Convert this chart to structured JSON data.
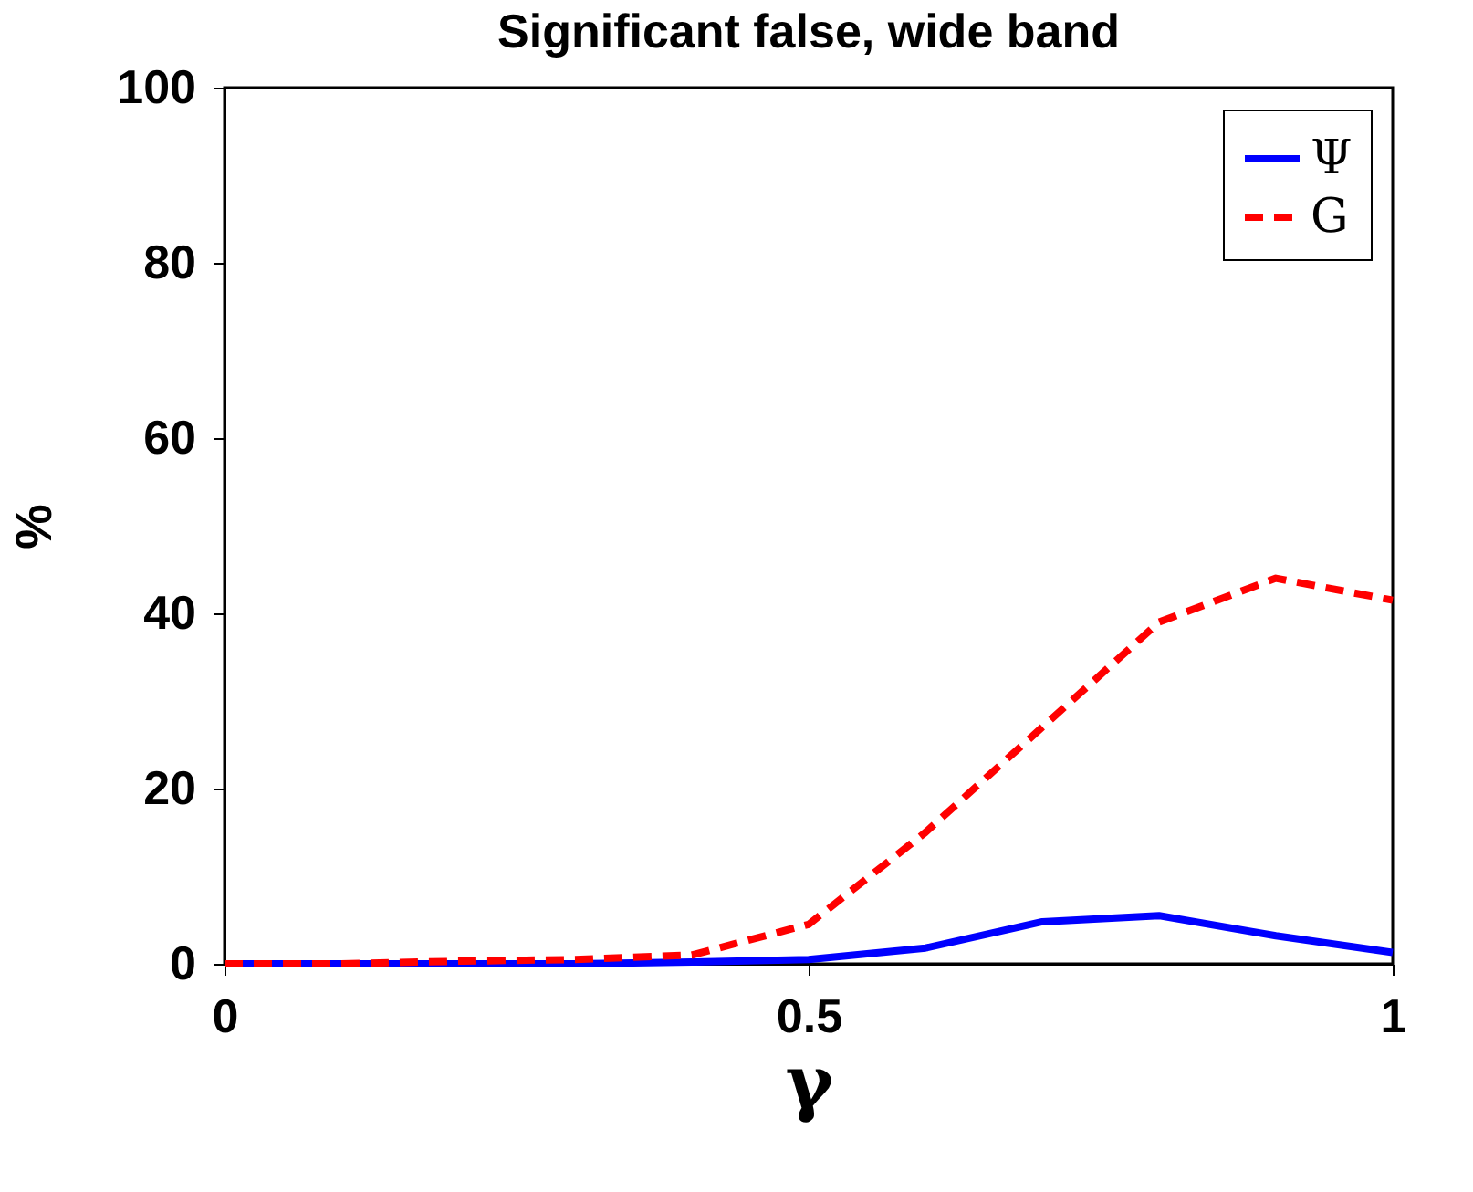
{
  "chart_data": {
    "type": "line",
    "title": "Significant false, wide band",
    "xlabel": "γ",
    "ylabel": "%",
    "x": [
      0,
      0.1,
      0.2,
      0.3,
      0.4,
      0.5,
      0.6,
      0.7,
      0.8,
      0.9,
      1
    ],
    "series": [
      {
        "name": "Ψ",
        "color": "#0000ff",
        "line_style": "solid",
        "values": [
          0,
          0,
          0,
          0,
          0.2,
          0.5,
          1.8,
          4.8,
          5.5,
          3.2,
          1.3
        ]
      },
      {
        "name": "G",
        "color": "#ff0000",
        "line_style": "dashed",
        "values": [
          0,
          0,
          0.3,
          0.5,
          1,
          4.5,
          15,
          27,
          39,
          44,
          41.5
        ]
      }
    ],
    "xlim": [
      0,
      1
    ],
    "xticks": [
      0,
      0.5,
      1
    ],
    "ylim": [
      0,
      100
    ],
    "yticks": [
      0,
      20,
      40,
      60,
      80,
      100
    ],
    "grid": false,
    "legend": "top right",
    "marker": "none"
  }
}
